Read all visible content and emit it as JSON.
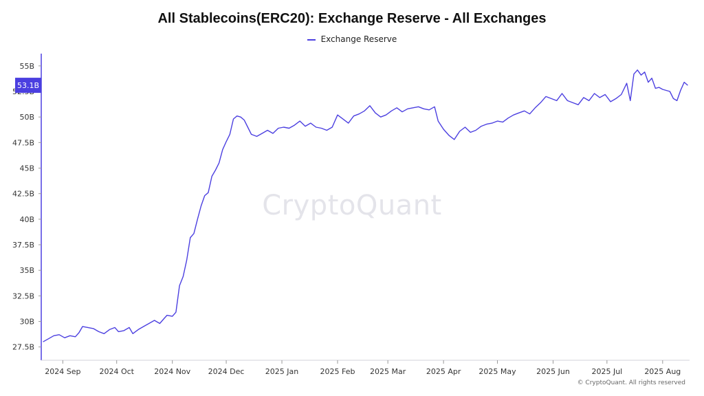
{
  "chart_data": {
    "type": "line",
    "title": "All Stablecoins(ERC20): Exchange Reserve - All Exchanges",
    "series": [
      {
        "name": "Exchange Reserve",
        "color": "#4b3fe0",
        "points": [
          [
            "2024-08-21",
            28.0
          ],
          [
            "2024-08-24",
            28.3
          ],
          [
            "2024-08-27",
            28.6
          ],
          [
            "2024-08-30",
            28.7
          ],
          [
            "2024-09-02",
            28.4
          ],
          [
            "2024-09-05",
            28.6
          ],
          [
            "2024-09-08",
            28.5
          ],
          [
            "2024-09-10",
            28.9
          ],
          [
            "2024-09-12",
            29.5
          ],
          [
            "2024-09-15",
            29.4
          ],
          [
            "2024-09-18",
            29.3
          ],
          [
            "2024-09-21",
            29.0
          ],
          [
            "2024-09-24",
            28.8
          ],
          [
            "2024-09-27",
            29.2
          ],
          [
            "2024-09-30",
            29.4
          ],
          [
            "2024-10-02",
            29.0
          ],
          [
            "2024-10-05",
            29.1
          ],
          [
            "2024-10-08",
            29.4
          ],
          [
            "2024-10-10",
            28.8
          ],
          [
            "2024-10-13",
            29.2
          ],
          [
            "2024-10-16",
            29.5
          ],
          [
            "2024-10-19",
            29.8
          ],
          [
            "2024-10-22",
            30.1
          ],
          [
            "2024-10-25",
            29.8
          ],
          [
            "2024-10-27",
            30.2
          ],
          [
            "2024-10-29",
            30.6
          ],
          [
            "2024-11-01",
            30.5
          ],
          [
            "2024-11-03",
            30.9
          ],
          [
            "2024-11-05",
            33.5
          ],
          [
            "2024-11-07",
            34.4
          ],
          [
            "2024-11-09",
            36.0
          ],
          [
            "2024-11-11",
            38.2
          ],
          [
            "2024-11-13",
            38.6
          ],
          [
            "2024-11-15",
            40.0
          ],
          [
            "2024-11-17",
            41.3
          ],
          [
            "2024-11-19",
            42.3
          ],
          [
            "2024-11-21",
            42.6
          ],
          [
            "2024-11-23",
            44.2
          ],
          [
            "2024-11-25",
            44.8
          ],
          [
            "2024-11-27",
            45.5
          ],
          [
            "2024-11-29",
            46.8
          ],
          [
            "2024-12-01",
            47.6
          ],
          [
            "2024-12-03",
            48.3
          ],
          [
            "2024-12-05",
            49.8
          ],
          [
            "2024-12-07",
            50.1
          ],
          [
            "2024-12-09",
            50.0
          ],
          [
            "2024-12-11",
            49.7
          ],
          [
            "2024-12-13",
            49.0
          ],
          [
            "2024-12-15",
            48.3
          ],
          [
            "2024-12-18",
            48.1
          ],
          [
            "2024-12-21",
            48.4
          ],
          [
            "2024-12-24",
            48.7
          ],
          [
            "2024-12-27",
            48.4
          ],
          [
            "2024-12-30",
            48.9
          ],
          [
            "2025-01-02",
            49.0
          ],
          [
            "2025-01-05",
            48.9
          ],
          [
            "2025-01-08",
            49.2
          ],
          [
            "2025-01-11",
            49.6
          ],
          [
            "2025-01-14",
            49.1
          ],
          [
            "2025-01-17",
            49.4
          ],
          [
            "2025-01-20",
            49.0
          ],
          [
            "2025-01-23",
            48.9
          ],
          [
            "2025-01-26",
            48.7
          ],
          [
            "2025-01-29",
            49.0
          ],
          [
            "2025-02-01",
            50.2
          ],
          [
            "2025-02-04",
            49.8
          ],
          [
            "2025-02-07",
            49.4
          ],
          [
            "2025-02-10",
            50.1
          ],
          [
            "2025-02-13",
            50.3
          ],
          [
            "2025-02-16",
            50.6
          ],
          [
            "2025-02-19",
            51.1
          ],
          [
            "2025-02-22",
            50.4
          ],
          [
            "2025-02-25",
            50.0
          ],
          [
            "2025-02-28",
            50.2
          ],
          [
            "2025-03-03",
            50.6
          ],
          [
            "2025-03-06",
            50.9
          ],
          [
            "2025-03-09",
            50.5
          ],
          [
            "2025-03-12",
            50.8
          ],
          [
            "2025-03-15",
            50.9
          ],
          [
            "2025-03-18",
            51.0
          ],
          [
            "2025-03-21",
            50.8
          ],
          [
            "2025-03-24",
            50.7
          ],
          [
            "2025-03-27",
            51.0
          ],
          [
            "2025-03-29",
            49.6
          ],
          [
            "2025-04-01",
            48.8
          ],
          [
            "2025-04-04",
            48.2
          ],
          [
            "2025-04-07",
            47.8
          ],
          [
            "2025-04-10",
            48.6
          ],
          [
            "2025-04-13",
            49.0
          ],
          [
            "2025-04-16",
            48.5
          ],
          [
            "2025-04-19",
            48.7
          ],
          [
            "2025-04-22",
            49.1
          ],
          [
            "2025-04-25",
            49.3
          ],
          [
            "2025-04-28",
            49.4
          ],
          [
            "2025-05-01",
            49.6
          ],
          [
            "2025-05-04",
            49.5
          ],
          [
            "2025-05-07",
            49.9
          ],
          [
            "2025-05-10",
            50.2
          ],
          [
            "2025-05-13",
            50.4
          ],
          [
            "2025-05-16",
            50.6
          ],
          [
            "2025-05-19",
            50.3
          ],
          [
            "2025-05-22",
            50.9
          ],
          [
            "2025-05-25",
            51.4
          ],
          [
            "2025-05-28",
            52.0
          ],
          [
            "2025-05-31",
            51.8
          ],
          [
            "2025-06-03",
            51.6
          ],
          [
            "2025-06-06",
            52.3
          ],
          [
            "2025-06-09",
            51.6
          ],
          [
            "2025-06-12",
            51.4
          ],
          [
            "2025-06-15",
            51.2
          ],
          [
            "2025-06-18",
            51.9
          ],
          [
            "2025-06-21",
            51.6
          ],
          [
            "2025-06-24",
            52.3
          ],
          [
            "2025-06-27",
            51.9
          ],
          [
            "2025-06-30",
            52.2
          ],
          [
            "2025-07-03",
            51.5
          ],
          [
            "2025-07-06",
            51.8
          ],
          [
            "2025-07-09",
            52.2
          ],
          [
            "2025-07-12",
            53.3
          ],
          [
            "2025-07-14",
            51.6
          ],
          [
            "2025-07-16",
            54.2
          ],
          [
            "2025-07-18",
            54.6
          ],
          [
            "2025-07-20",
            54.1
          ],
          [
            "2025-07-22",
            54.4
          ],
          [
            "2025-07-24",
            53.4
          ],
          [
            "2025-07-26",
            53.8
          ],
          [
            "2025-07-28",
            52.8
          ],
          [
            "2025-07-30",
            52.9
          ],
          [
            "2025-08-01",
            52.7
          ],
          [
            "2025-08-03",
            52.6
          ],
          [
            "2025-08-05",
            52.5
          ],
          [
            "2025-08-07",
            51.8
          ],
          [
            "2025-08-09",
            51.6
          ],
          [
            "2025-08-11",
            52.6
          ],
          [
            "2025-08-13",
            53.4
          ],
          [
            "2025-08-15",
            53.1
          ]
        ]
      }
    ],
    "xaxis": {
      "ticks": [
        {
          "date": "2024-09-01",
          "label": "2024 Sep"
        },
        {
          "date": "2024-10-01",
          "label": "2024 Oct"
        },
        {
          "date": "2024-11-01",
          "label": "2024 Nov"
        },
        {
          "date": "2024-12-01",
          "label": "2024 Dec"
        },
        {
          "date": "2025-01-01",
          "label": "2025 Jan"
        },
        {
          "date": "2025-02-01",
          "label": "2025 Feb"
        },
        {
          "date": "2025-03-01",
          "label": "2025 Mar"
        },
        {
          "date": "2025-04-01",
          "label": "2025 Apr"
        },
        {
          "date": "2025-05-01",
          "label": "2025 May"
        },
        {
          "date": "2025-06-01",
          "label": "2025 Jun"
        },
        {
          "date": "2025-07-01",
          "label": "2025 Jul"
        },
        {
          "date": "2025-08-01",
          "label": "2025 Aug"
        }
      ],
      "range": [
        "2024-08-20",
        "2025-08-16"
      ]
    },
    "yaxis": {
      "ticks": [
        {
          "value": 27.5,
          "label": "27.5B"
        },
        {
          "value": 30,
          "label": "30B"
        },
        {
          "value": 32.5,
          "label": "32.5B"
        },
        {
          "value": 35,
          "label": "35B"
        },
        {
          "value": 37.5,
          "label": "37.5B"
        },
        {
          "value": 40,
          "label": "40B"
        },
        {
          "value": 42.5,
          "label": "42.5B"
        },
        {
          "value": 45,
          "label": "45B"
        },
        {
          "value": 47.5,
          "label": "47.5B"
        },
        {
          "value": 50,
          "label": "50B"
        },
        {
          "value": 52.5,
          "label": "52.5B"
        },
        {
          "value": 55,
          "label": "55B"
        }
      ],
      "range": [
        26.2,
        56.2
      ]
    },
    "current_value": {
      "value": 53.1,
      "label": "53.1B"
    },
    "grid": false,
    "legend": "top-center"
  },
  "watermark": "CryptoQuant",
  "copyright": "© CryptoQuant. All rights reserved"
}
